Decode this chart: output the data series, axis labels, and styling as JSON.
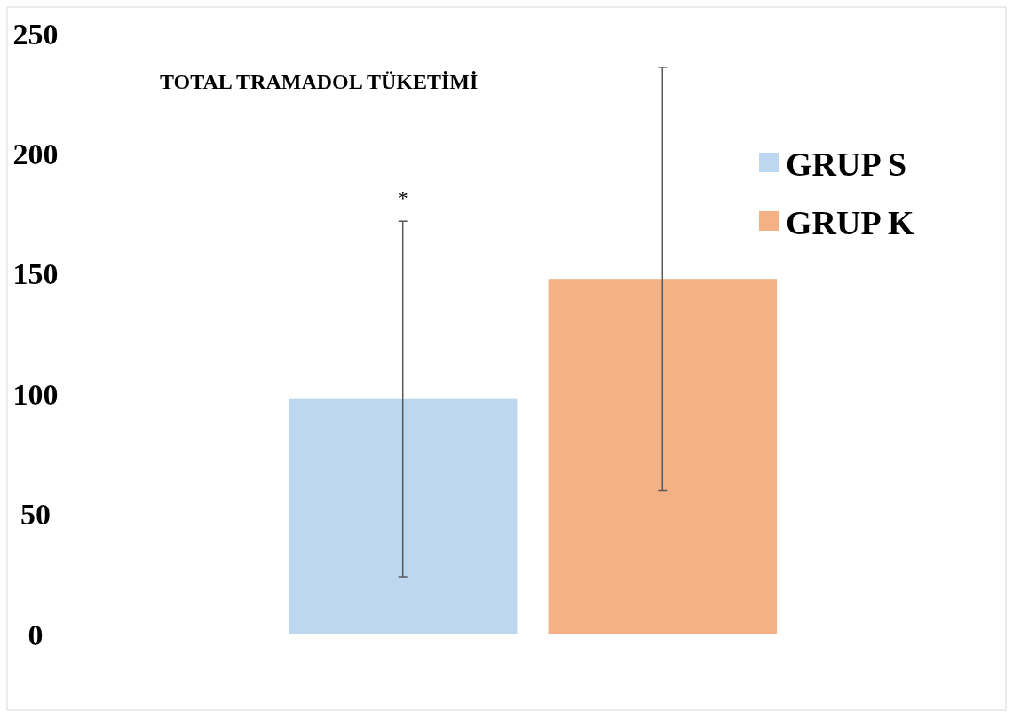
{
  "chart_data": {
    "type": "bar",
    "title": "TOTAL TRAMADOL TÜKETİMİ",
    "categories": [
      null
    ],
    "series": [
      {
        "name": "GRUP S",
        "color": "#bdd7ee",
        "values": [
          98
        ],
        "errors": [
          74
        ]
      },
      {
        "name": "GRUP K",
        "color": "#f4b183",
        "values": [
          148
        ],
        "errors": [
          88
        ]
      }
    ],
    "ylim": [
      0,
      250
    ],
    "yticks": [
      0,
      50,
      100,
      150,
      200,
      250
    ],
    "grid": false,
    "legend": "right",
    "annotations": [
      "*"
    ]
  }
}
